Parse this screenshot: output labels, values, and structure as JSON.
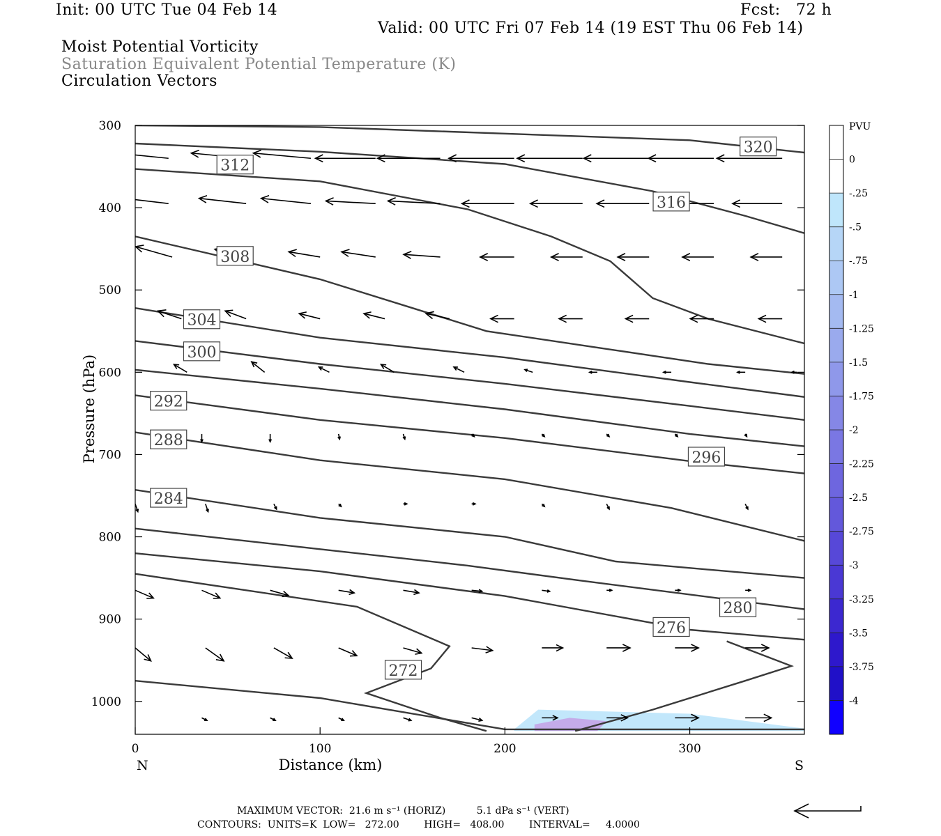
{
  "header": {
    "init": "Init: 00 UTC Tue 04 Feb 14",
    "fcst": "Fcst:   72 h",
    "valid": "Valid: 00 UTC Fri 07 Feb 14 (19 EST Thu 06 Feb 14)",
    "field1": "Moist Potential Vorticity",
    "field2": "Saturation Equivalent Potential Temperature (K)",
    "field3": "Circulation Vectors"
  },
  "footer": {
    "line1": "MAXIMUM VECTOR:  21.6 m s⁻¹ (HORIZ)          5.1 dPa s⁻¹ (VERT)",
    "line2": "CONTOURS:  UNITS=K  LOW=   272.00        HIGH=   408.00        INTERVAL=     4.0000"
  },
  "colors": {
    "contour": "#3a3a3a",
    "vector": "#000000",
    "shade_light": "#bfe6fb",
    "shade_mid": "#a8c8f0",
    "shade_dark": "#c4a8e8"
  },
  "chart_data": {
    "type": "cross-section",
    "xlabel": "Distance (km)",
    "ylabel": "Pressure (hPa)",
    "xlim": [
      0,
      362
    ],
    "ylim": [
      1040,
      300
    ],
    "x_ticks": [
      0,
      100,
      200,
      300
    ],
    "y_ticks": [
      300,
      400,
      500,
      600,
      700,
      800,
      900,
      1000
    ],
    "x_end_labels": {
      "left": "N",
      "right": "S"
    },
    "colorbar": {
      "unit": "PVU",
      "levels": [
        "0",
        "-.25",
        "-.5",
        "-.75",
        "-1",
        "-1.25",
        "-1.5",
        "-1.75",
        "-2",
        "-2.25",
        "-2.5",
        "-2.75",
        "-3",
        "-3.25",
        "-3.5",
        "-3.75",
        "-4"
      ],
      "colors": [
        "#ffffff",
        "#ffffff",
        "#bfe6fb",
        "#b6d6f7",
        "#adc8f4",
        "#a4baf1",
        "#9aaaed",
        "#8f98ea",
        "#8587e6",
        "#7a77e3",
        "#6e66df",
        "#6358db",
        "#5748d8",
        "#4a38d4",
        "#3c28d0",
        "#2e18cc",
        "#2010c8",
        "#1000ff"
      ]
    },
    "contours": [
      {
        "level": 320,
        "label": "320",
        "label_at": [
          337,
          326
        ],
        "points": [
          [
            0,
            300
          ],
          [
            100,
            302
          ],
          [
            200,
            310
          ],
          [
            300,
            318
          ],
          [
            362,
            333
          ]
        ]
      },
      {
        "level": 316,
        "label": "316",
        "label_at": [
          290,
          393
        ],
        "points": [
          [
            0,
            322
          ],
          [
            100,
            332
          ],
          [
            200,
            347
          ],
          [
            280,
            380
          ],
          [
            330,
            410
          ],
          [
            362,
            431
          ]
        ]
      },
      {
        "level": 312,
        "label": "312",
        "label_at": [
          54,
          348
        ],
        "points": [
          [
            0,
            353
          ],
          [
            100,
            368
          ],
          [
            180,
            402
          ],
          [
            225,
            435
          ],
          [
            257,
            465
          ],
          [
            280,
            510
          ],
          [
            310,
            535
          ],
          [
            362,
            565
          ]
        ]
      },
      {
        "level": 308,
        "label": "308",
        "label_at": [
          54,
          459
        ],
        "points": [
          [
            0,
            435
          ],
          [
            100,
            487
          ],
          [
            150,
            522
          ],
          [
            190,
            550
          ],
          [
            250,
            570
          ],
          [
            310,
            590
          ],
          [
            362,
            602
          ]
        ]
      },
      {
        "level": 304,
        "label": "304",
        "label_at": [
          36,
          536
        ],
        "points": [
          [
            0,
            522
          ],
          [
            100,
            558
          ],
          [
            200,
            582
          ],
          [
            300,
            612
          ],
          [
            362,
            630
          ]
        ]
      },
      {
        "level": 300,
        "label": "300",
        "label_at": [
          36,
          575
        ],
        "points": [
          [
            0,
            562
          ],
          [
            100,
            590
          ],
          [
            200,
            614
          ],
          [
            300,
            641
          ],
          [
            362,
            658
          ]
        ]
      },
      {
        "level": 296,
        "label": "296",
        "label_at": [
          309,
          703
        ],
        "points": [
          [
            0,
            597
          ],
          [
            100,
            620
          ],
          [
            200,
            645
          ],
          [
            300,
            675
          ],
          [
            362,
            690
          ]
        ]
      },
      {
        "level": 292,
        "label": "292",
        "label_at": [
          18,
          635
        ],
        "points": [
          [
            0,
            628
          ],
          [
            100,
            658
          ],
          [
            200,
            680
          ],
          [
            300,
            708
          ],
          [
            362,
            723
          ]
        ]
      },
      {
        "level": 288,
        "label": "288",
        "label_at": [
          18,
          682
        ],
        "points": [
          [
            0,
            673
          ],
          [
            100,
            707
          ],
          [
            200,
            730
          ],
          [
            290,
            765
          ],
          [
            362,
            805
          ]
        ]
      },
      {
        "level": 284,
        "label": "284",
        "label_at": [
          18,
          753
        ],
        "points": [
          [
            0,
            743
          ],
          [
            100,
            777
          ],
          [
            200,
            800
          ],
          [
            260,
            830
          ],
          [
            362,
            850
          ]
        ]
      },
      {
        "level": 280,
        "label": "280",
        "label_at": [
          326,
          886
        ],
        "points": [
          [
            0,
            790
          ],
          [
            100,
            815
          ],
          [
            180,
            835
          ],
          [
            240,
            853
          ],
          [
            362,
            888
          ]
        ]
      },
      {
        "level": 276,
        "label": "276",
        "label_at": [
          290,
          910
        ],
        "points": [
          [
            0,
            820
          ],
          [
            100,
            842
          ],
          [
            200,
            872
          ],
          [
            300,
            913
          ],
          [
            362,
            925
          ]
        ]
      },
      {
        "level": 272,
        "label": "272",
        "label_at": [
          145,
          962
        ],
        "points": [
          [
            0,
            845
          ],
          [
            120,
            885
          ],
          [
            170,
            933
          ],
          [
            160,
            960
          ],
          [
            125,
            990
          ],
          [
            165,
            1020
          ],
          [
            190,
            1036
          ]
        ]
      },
      {
        "level": 272,
        "label": "",
        "label_at": null,
        "points": [
          [
            0,
            975
          ],
          [
            100,
            996
          ],
          [
            200,
            1034
          ],
          [
            362,
            1034
          ]
        ]
      },
      {
        "level": 272,
        "label": "",
        "label_at": null,
        "points": [
          [
            238,
            1036
          ],
          [
            280,
            1010
          ],
          [
            330,
            975
          ],
          [
            355,
            957
          ],
          [
            320,
            927
          ]
        ]
      }
    ],
    "pv_shading": [
      {
        "value": "-0.5",
        "points": [
          [
            205,
            1034
          ],
          [
            218,
            1010
          ],
          [
            300,
            1015
          ],
          [
            362,
            1033
          ],
          [
            362,
            1036
          ],
          [
            205,
            1036
          ]
        ]
      },
      {
        "value": "-1",
        "points": [
          [
            216,
            1028
          ],
          [
            235,
            1020
          ],
          [
            255,
            1024
          ],
          [
            250,
            1036
          ],
          [
            216,
            1036
          ]
        ]
      }
    ],
    "vectors": [
      {
        "p": 340,
        "xs": [
          18,
          60,
          95,
          130,
          165,
          205,
          242,
          278,
          313,
          350
        ],
        "u": [
          -1.0,
          -1.05,
          -1.1,
          -1.15,
          -1.2,
          -1.25,
          -1.25,
          -1.25,
          -1.25,
          -1.25
        ],
        "w": [
          0.1,
          0.1,
          0.1,
          0,
          0,
          0,
          0,
          0,
          0,
          0
        ]
      },
      {
        "p": 395,
        "xs": [
          18,
          60,
          95,
          130,
          165,
          205,
          242,
          278,
          313,
          350
        ],
        "u": [
          -0.85,
          -0.9,
          -0.95,
          -0.95,
          -1.0,
          -1.0,
          -1.0,
          -1.0,
          -1.0,
          -0.95
        ],
        "w": [
          0.1,
          0.1,
          0.1,
          0.05,
          0.05,
          0,
          0,
          0,
          0,
          0
        ]
      },
      {
        "p": 460,
        "xs": [
          20,
          60,
          100,
          130,
          165,
          205,
          242,
          278,
          313,
          350
        ],
        "u": [
          -0.7,
          -0.6,
          -0.6,
          -0.65,
          -0.7,
          -0.65,
          -0.6,
          -0.6,
          -0.6,
          -0.6
        ],
        "w": [
          0.2,
          0.15,
          0.1,
          0.1,
          0.05,
          0,
          0,
          0,
          0,
          0
        ]
      },
      {
        "p": 535,
        "xs": [
          25,
          60,
          100,
          135,
          170,
          205,
          242,
          278,
          313,
          350
        ],
        "u": [
          -0.45,
          -0.4,
          -0.4,
          -0.4,
          -0.45,
          -0.45,
          -0.45,
          -0.45,
          -0.45,
          -0.45
        ],
        "w": [
          0.15,
          0.15,
          0.1,
          0.1,
          0.1,
          0,
          0,
          0,
          0,
          0
        ]
      },
      {
        "p": 600,
        "xs": [
          28,
          70,
          105,
          140,
          178,
          215,
          250,
          290,
          330,
          358
        ],
        "u": [
          -0.25,
          -0.25,
          -0.2,
          -0.25,
          -0.2,
          -0.15,
          -0.15,
          -0.15,
          -0.15,
          -0.1
        ],
        "w": [
          0.15,
          0.2,
          0.1,
          0.15,
          0.1,
          0.05,
          0,
          0,
          0,
          0
        ]
      },
      {
        "p": 675,
        "xs": [
          36,
          73,
          110,
          145,
          182,
          220,
          255,
          292,
          330
        ],
        "u": [
          0,
          0,
          0.02,
          0.03,
          0.05,
          0.05,
          0.05,
          0.05,
          0.03
        ],
        "w": [
          -0.15,
          -0.15,
          -0.1,
          -0.1,
          -0.05,
          -0.05,
          -0.05,
          -0.05,
          -0.05
        ]
      },
      {
        "p": 760,
        "xs": [
          0,
          38,
          75,
          110,
          145,
          182,
          220,
          255,
          330
        ],
        "u": [
          0.05,
          0.05,
          0.05,
          0.05,
          0.07,
          0.07,
          0.05,
          0.05,
          0.05
        ],
        "w": [
          -0.15,
          -0.15,
          -0.1,
          -0.05,
          0,
          0,
          -0.05,
          -0.1,
          -0.1
        ]
      },
      {
        "p": 865,
        "xs": [
          0,
          36,
          73,
          110,
          145,
          182,
          220,
          255,
          292,
          330
        ],
        "u": [
          0.35,
          0.35,
          0.35,
          0.3,
          0.3,
          0.2,
          0.15,
          0.1,
          0.1,
          0.1
        ],
        "w": [
          -0.15,
          -0.15,
          -0.1,
          -0.05,
          -0.05,
          -0.02,
          -0.02,
          0,
          0,
          0
        ]
      },
      {
        "p": 935,
        "xs": [
          0,
          38,
          75,
          110,
          145,
          182,
          220,
          255,
          292,
          330
        ],
        "u": [
          0.3,
          0.35,
          0.35,
          0.35,
          0.35,
          0.4,
          0.4,
          0.45,
          0.45,
          0.45
        ],
        "w": [
          -0.25,
          -0.25,
          -0.2,
          -0.15,
          -0.1,
          -0.05,
          0,
          0,
          0,
          0
        ]
      },
      {
        "p": 1020,
        "xs": [
          36,
          73,
          110,
          145,
          182,
          220,
          255,
          292,
          330
        ],
        "u": [
          0.1,
          0.1,
          0.1,
          0.15,
          0.2,
          0.3,
          0.4,
          0.45,
          0.5
        ],
        "w": [
          -0.05,
          -0.05,
          -0.05,
          -0.05,
          -0.05,
          0,
          0,
          0,
          0
        ]
      }
    ]
  }
}
